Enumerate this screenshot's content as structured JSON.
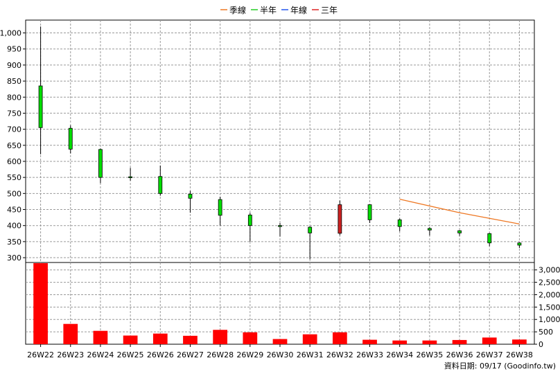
{
  "legend": [
    {
      "label": "季線",
      "color": "#ee7722"
    },
    {
      "label": "半年",
      "color": "#22cc22"
    },
    {
      "label": "年線",
      "color": "#2255ee"
    },
    {
      "label": "三年",
      "color": "#dd2222"
    }
  ],
  "footer": {
    "text": "資料日期: 09/17  (Goodinfo.tw)"
  },
  "chart_data": {
    "type": "candlestick",
    "categories": [
      "26W22",
      "26W23",
      "26W24",
      "26W25",
      "26W26",
      "26W27",
      "26W28",
      "26W29",
      "26W30",
      "26W31",
      "26W32",
      "26W33",
      "26W34",
      "26W35",
      "26W36",
      "26W37",
      "26W38"
    ],
    "price_axis": {
      "ylim": [
        285,
        1040
      ],
      "ticks": [
        300,
        350,
        400,
        450,
        500,
        550,
        600,
        650,
        700,
        750,
        800,
        850,
        900,
        950,
        1000
      ],
      "tick_labels": [
        "300",
        "350",
        "400",
        "450",
        "500",
        "550",
        "600",
        "650",
        "700",
        "750",
        "800",
        "850",
        "900",
        "950",
        "1,000"
      ]
    },
    "volume_axis": {
      "ylim": [
        0,
        3300
      ],
      "ticks": [
        0,
        500,
        1000,
        1500,
        2000,
        2500,
        3000
      ],
      "tick_labels": [
        "0",
        "500",
        "1,000",
        "1,500",
        "2,000",
        "2,500",
        "3,000"
      ]
    },
    "candles": [
      {
        "open": 705,
        "close": 835,
        "high": 1020,
        "low": 622,
        "color": "green"
      },
      {
        "open": 638,
        "close": 703,
        "high": 712,
        "low": 625,
        "color": "green"
      },
      {
        "open": 550,
        "close": 637,
        "high": 640,
        "low": 532,
        "color": "green"
      },
      {
        "open": 549,
        "close": 552,
        "high": 580,
        "low": 540,
        "color": "green"
      },
      {
        "open": 500,
        "close": 553,
        "high": 587,
        "low": 493,
        "color": "green"
      },
      {
        "open": 485,
        "close": 498,
        "high": 508,
        "low": 440,
        "color": "green"
      },
      {
        "open": 432,
        "close": 481,
        "high": 490,
        "low": 400,
        "color": "green"
      },
      {
        "open": 400,
        "close": 433,
        "high": 440,
        "low": 350,
        "color": "green"
      },
      {
        "open": 397,
        "close": 400,
        "high": 408,
        "low": 366,
        "color": "green"
      },
      {
        "open": 377,
        "close": 395,
        "high": 398,
        "low": 295,
        "color": "green"
      },
      {
        "open": 465,
        "close": 376,
        "high": 478,
        "low": 370,
        "color": "red"
      },
      {
        "open": 418,
        "close": 465,
        "high": 466,
        "low": 408,
        "color": "green"
      },
      {
        "open": 397,
        "close": 418,
        "high": 422,
        "low": 382,
        "color": "green"
      },
      {
        "open": 386,
        "close": 391,
        "high": 395,
        "low": 369,
        "color": "green"
      },
      {
        "open": 377,
        "close": 384,
        "high": 386,
        "low": 368,
        "color": "green"
      },
      {
        "open": 346,
        "close": 375,
        "high": 377,
        "low": 336,
        "color": "green"
      },
      {
        "open": 339,
        "close": 346,
        "high": 348,
        "low": 330,
        "color": "green"
      }
    ],
    "volume": [
      3350,
      820,
      540,
      350,
      430,
      340,
      580,
      480,
      210,
      400,
      480,
      180,
      150,
      150,
      170,
      270,
      190
    ],
    "series": [
      {
        "name": "季線",
        "points": [
          [
            12,
            482
          ],
          [
            14,
            440
          ],
          [
            16,
            405
          ]
        ]
      }
    ],
    "grid": true
  }
}
